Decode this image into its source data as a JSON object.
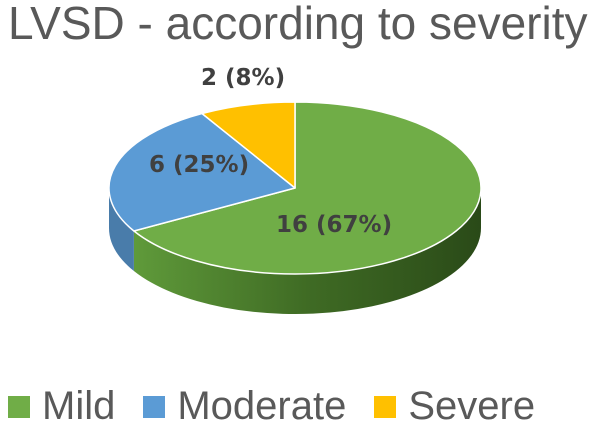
{
  "title": "LVSD - according to severity",
  "chart_data": {
    "type": "pie",
    "title": "LVSD - according to severity",
    "categories": [
      "Mild",
      "Moderate",
      "Severe"
    ],
    "values": [
      16,
      6,
      2
    ],
    "percentages": [
      67,
      25,
      8
    ],
    "data_labels": [
      "16 (67%)",
      "6 (25%)",
      "2 (8%)"
    ],
    "colors": [
      "#70ad47",
      "#5b9bd5",
      "#ffc000"
    ],
    "legend_position": "bottom",
    "style": "3d-pie"
  },
  "legend": [
    {
      "label": "Mild",
      "color": "#70ad47"
    },
    {
      "label": "Moderate",
      "color": "#5b9bd5"
    },
    {
      "label": "Severe",
      "color": "#ffc000"
    }
  ]
}
